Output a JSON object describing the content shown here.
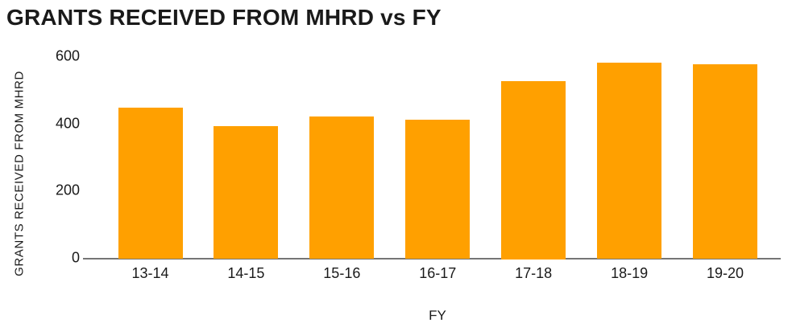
{
  "chart_data": {
    "type": "bar",
    "title": "GRANTS RECEIVED FROM MHRD vs FY",
    "xlabel": "FY",
    "ylabel": "GRANTS RECEIVED FROM MHRD",
    "categories": [
      "13-14",
      "14-15",
      "15-16",
      "16-17",
      "17-18",
      "18-19",
      "19-20"
    ],
    "values": [
      448,
      392,
      420,
      410,
      525,
      580,
      576
    ],
    "ylim": [
      0,
      600
    ],
    "yticks": [
      0,
      200,
      400,
      600
    ],
    "grid": false,
    "legend": "none",
    "bar_color": "#FFA000",
    "axis_line_color": "#757575",
    "text_color": "#1a1a1a"
  }
}
